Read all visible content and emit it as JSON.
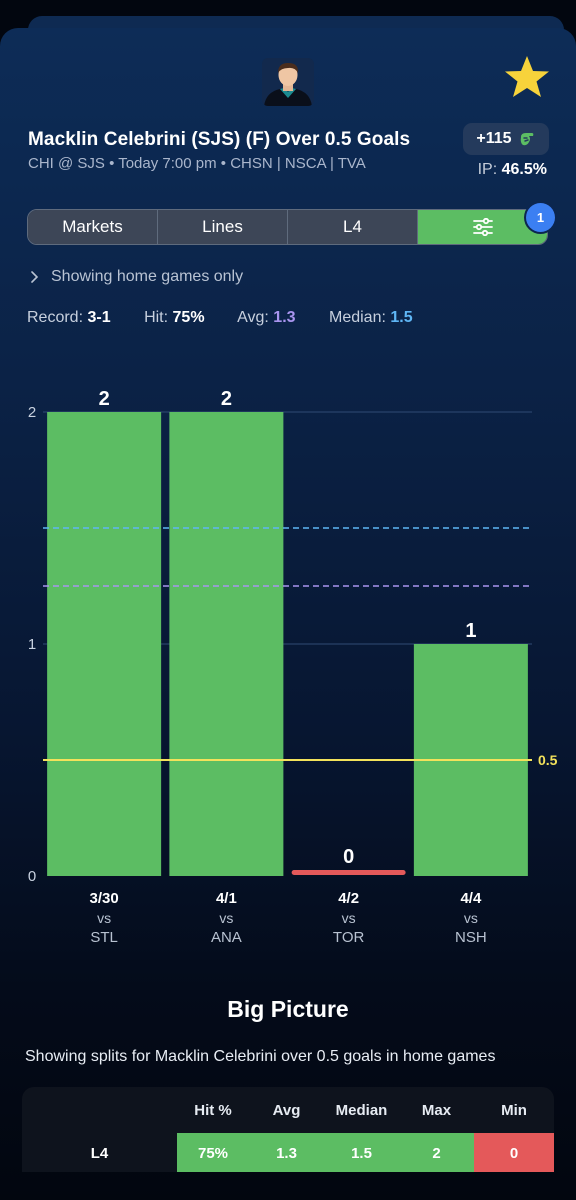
{
  "player": {
    "title": "Macklin Celebrini (SJS) (F) Over 0.5 Goals",
    "subtitle": "CHI @ SJS • Today 7:00 pm • CHSN | NSCA | TVA",
    "odds": "+115",
    "ip_label": "IP:",
    "ip_value": "46.5%"
  },
  "tabs": [
    {
      "label": "Markets"
    },
    {
      "label": "Lines"
    },
    {
      "label": "L4"
    }
  ],
  "filter_badge": "1",
  "home_note": "Showing home games only",
  "stats": {
    "record_label": "Record:",
    "record_value": "3-1",
    "hit_label": "Hit:",
    "hit_value": "75%",
    "avg_label": "Avg:",
    "avg_value": "1.3",
    "median_label": "Median:",
    "median_value": "1.5"
  },
  "colors": {
    "hit": "#5cbd63",
    "miss": "#e4595a",
    "line": "#f3e25b",
    "avg": "#a995ef",
    "median": "#5fb6f5"
  },
  "chart_data": {
    "type": "bar",
    "categories": [
      {
        "date": "3/30",
        "vs": "vs",
        "opp": "STL"
      },
      {
        "date": "4/1",
        "vs": "vs",
        "opp": "ANA"
      },
      {
        "date": "4/2",
        "vs": "vs",
        "opp": "TOR"
      },
      {
        "date": "4/4",
        "vs": "vs",
        "opp": "NSH"
      }
    ],
    "values": [
      2,
      2,
      0,
      1
    ],
    "data_labels": [
      "2",
      "2",
      "0",
      "1"
    ],
    "y_ticks": [
      "0",
      "1",
      "2"
    ],
    "ylim": [
      0,
      2
    ],
    "threshold": 0.5,
    "threshold_label": "0.5",
    "avg_line": 1.25,
    "median_line": 1.5,
    "grid": true
  },
  "big_picture": {
    "title": "Big Picture",
    "subtitle": "Showing splits for Macklin Celebrini over 0.5 goals in home games",
    "headers": [
      "",
      "Hit %",
      "Avg",
      "Median",
      "Max",
      "Min"
    ],
    "rows": [
      {
        "label": "L4",
        "hit": "75%",
        "avg": "1.3",
        "median": "1.5",
        "max": "2",
        "min": "0"
      }
    ]
  }
}
